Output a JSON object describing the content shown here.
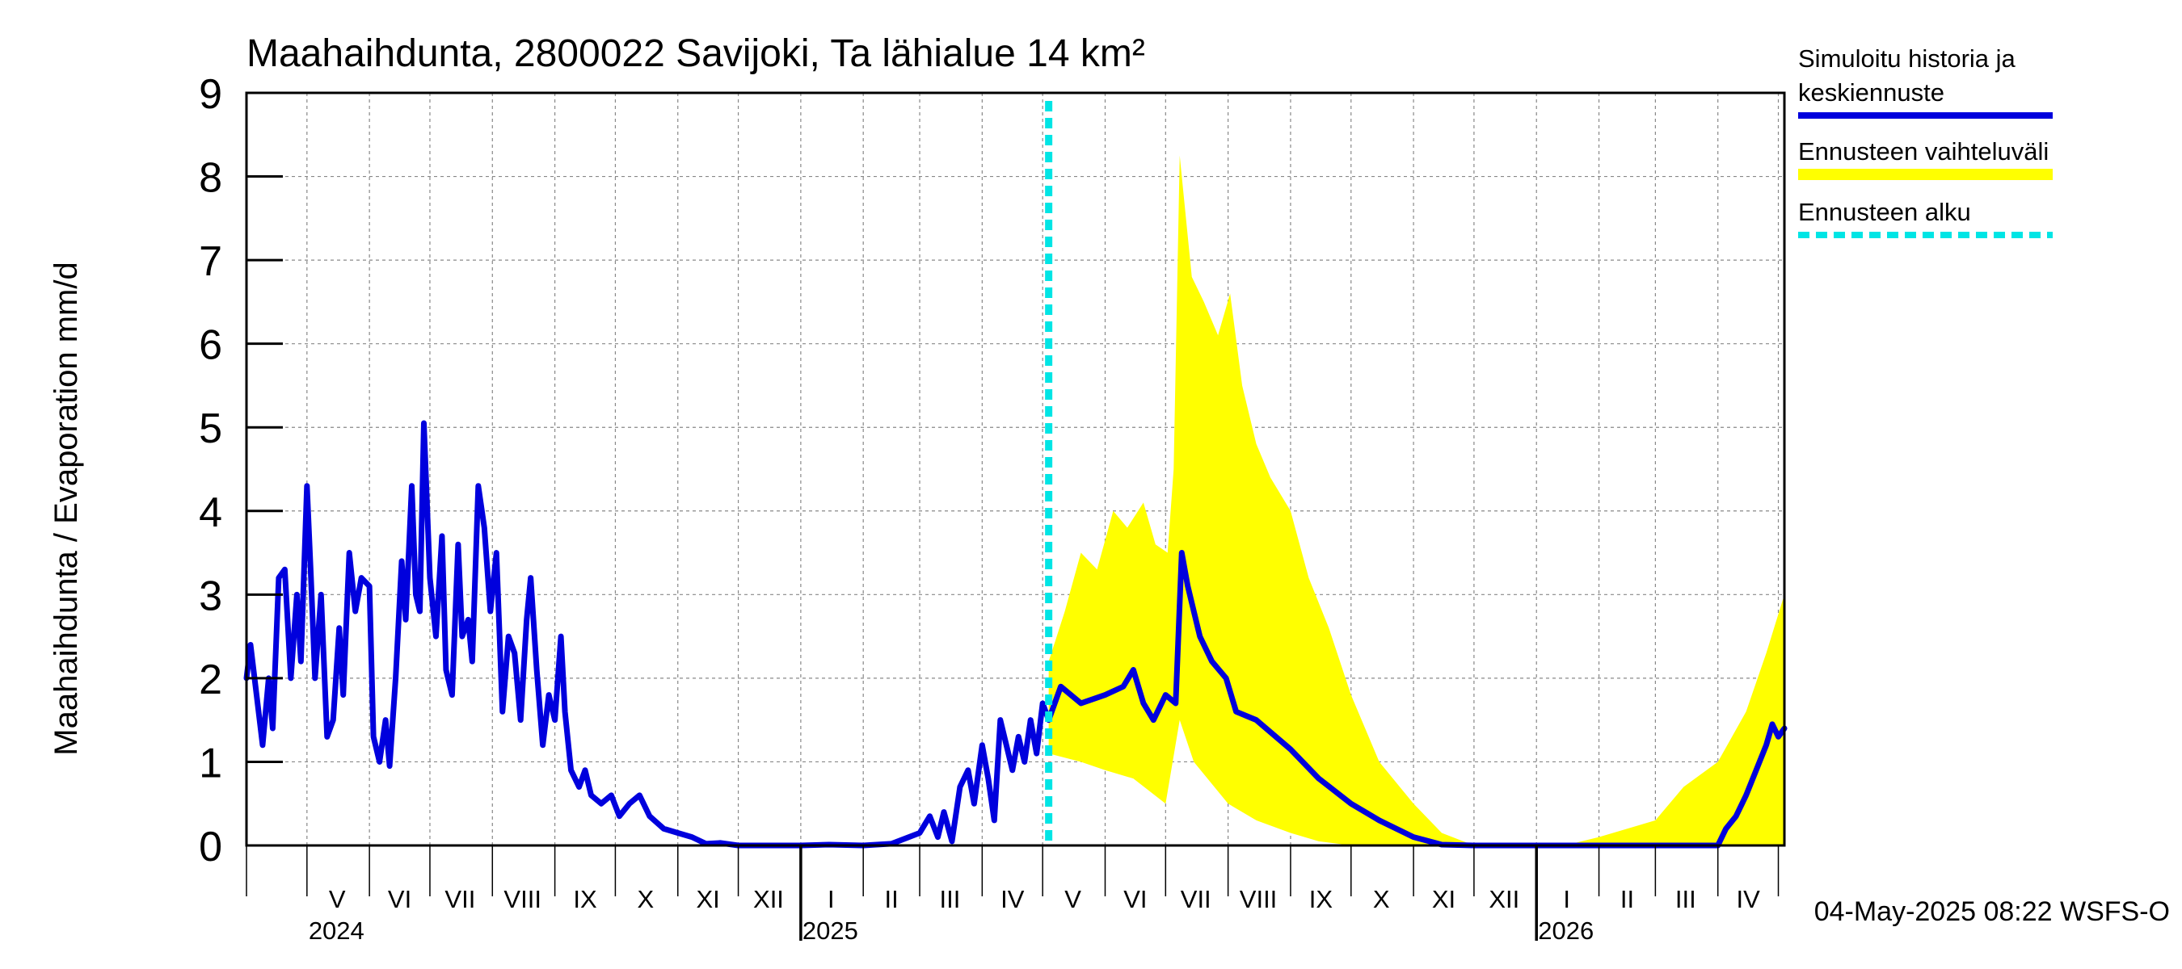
{
  "chart_data": {
    "type": "line",
    "title": "Maahaihdunta, 2800022 Savijoki, Ta lähialue 14 km²",
    "ylabel": "Maahaihdunta / Evaporation   mm/d",
    "ylim": [
      0,
      9
    ],
    "y_ticks": [
      "0",
      "1",
      "2",
      "3",
      "4",
      "5",
      "6",
      "7",
      "8",
      "9"
    ],
    "xlim": [
      "2024-04-01",
      "2026-05-04"
    ],
    "grid": true,
    "month_ticks": [
      "2024-04-01",
      "2024-05-01",
      "2024-06-01",
      "2024-07-01",
      "2024-08-01",
      "2024-09-01",
      "2024-10-01",
      "2024-11-01",
      "2024-12-01",
      "2025-01-01",
      "2025-02-01",
      "2025-03-01",
      "2025-04-01",
      "2025-05-01",
      "2025-06-01",
      "2025-07-01",
      "2025-08-01",
      "2025-09-01",
      "2025-10-01",
      "2025-11-01",
      "2025-12-01",
      "2026-01-01",
      "2026-02-01",
      "2026-03-01",
      "2026-04-01",
      "2026-05-01"
    ],
    "month_labels": [
      {
        "label": "V",
        "date": "2024-05-16"
      },
      {
        "label": "VI",
        "date": "2024-06-16"
      },
      {
        "label": "VII",
        "date": "2024-07-16"
      },
      {
        "label": "VIII",
        "date": "2024-08-16"
      },
      {
        "label": "IX",
        "date": "2024-09-16"
      },
      {
        "label": "X",
        "date": "2024-10-16"
      },
      {
        "label": "XI",
        "date": "2024-11-16"
      },
      {
        "label": "XII",
        "date": "2024-12-16"
      },
      {
        "label": "I",
        "date": "2025-01-16"
      },
      {
        "label": "II",
        "date": "2025-02-15"
      },
      {
        "label": "III",
        "date": "2025-03-16"
      },
      {
        "label": "IV",
        "date": "2025-04-16"
      },
      {
        "label": "V",
        "date": "2025-05-16"
      },
      {
        "label": "VI",
        "date": "2025-06-16"
      },
      {
        "label": "VII",
        "date": "2025-07-16"
      },
      {
        "label": "VIII",
        "date": "2025-08-16"
      },
      {
        "label": "IX",
        "date": "2025-09-16"
      },
      {
        "label": "X",
        "date": "2025-10-16"
      },
      {
        "label": "XI",
        "date": "2025-11-16"
      },
      {
        "label": "XII",
        "date": "2025-12-16"
      },
      {
        "label": "I",
        "date": "2026-01-16"
      },
      {
        "label": "II",
        "date": "2026-02-15"
      },
      {
        "label": "III",
        "date": "2026-03-16"
      },
      {
        "label": "IV",
        "date": "2026-04-16"
      }
    ],
    "year_labels": [
      {
        "label": "2024",
        "date": "2024-05-01"
      },
      {
        "label": "2025",
        "date": "2025-01-01"
      },
      {
        "label": "2026",
        "date": "2026-01-01"
      }
    ],
    "forecast_start": "2025-05-04",
    "series": [
      {
        "name": "Simuloitu historia ja keskiennuste",
        "color": "#0000dd",
        "points": [
          [
            "2024-04-01",
            2.0
          ],
          [
            "2024-04-03",
            2.4
          ],
          [
            "2024-04-06",
            1.8
          ],
          [
            "2024-04-09",
            1.2
          ],
          [
            "2024-04-12",
            2.0
          ],
          [
            "2024-04-14",
            1.4
          ],
          [
            "2024-04-17",
            3.2
          ],
          [
            "2024-04-20",
            3.3
          ],
          [
            "2024-04-23",
            2.0
          ],
          [
            "2024-04-26",
            3.0
          ],
          [
            "2024-04-28",
            2.2
          ],
          [
            "2024-05-01",
            4.3
          ],
          [
            "2024-05-03",
            3.2
          ],
          [
            "2024-05-05",
            2.0
          ],
          [
            "2024-05-08",
            3.0
          ],
          [
            "2024-05-11",
            1.3
          ],
          [
            "2024-05-14",
            1.5
          ],
          [
            "2024-05-17",
            2.6
          ],
          [
            "2024-05-19",
            1.8
          ],
          [
            "2024-05-22",
            3.5
          ],
          [
            "2024-05-25",
            2.8
          ],
          [
            "2024-05-28",
            3.2
          ],
          [
            "2024-06-01",
            3.1
          ],
          [
            "2024-06-03",
            1.3
          ],
          [
            "2024-06-06",
            1.0
          ],
          [
            "2024-06-09",
            1.5
          ],
          [
            "2024-06-11",
            0.95
          ],
          [
            "2024-06-14",
            2.0
          ],
          [
            "2024-06-17",
            3.4
          ],
          [
            "2024-06-19",
            2.7
          ],
          [
            "2024-06-22",
            4.3
          ],
          [
            "2024-06-24",
            3.0
          ],
          [
            "2024-06-26",
            2.8
          ],
          [
            "2024-06-28",
            5.05
          ],
          [
            "2024-07-01",
            3.2
          ],
          [
            "2024-07-04",
            2.5
          ],
          [
            "2024-07-07",
            3.7
          ],
          [
            "2024-07-09",
            2.1
          ],
          [
            "2024-07-12",
            1.8
          ],
          [
            "2024-07-15",
            3.6
          ],
          [
            "2024-07-17",
            2.5
          ],
          [
            "2024-07-20",
            2.7
          ],
          [
            "2024-07-22",
            2.2
          ],
          [
            "2024-07-25",
            4.3
          ],
          [
            "2024-07-28",
            3.8
          ],
          [
            "2024-07-31",
            2.8
          ],
          [
            "2024-08-03",
            3.5
          ],
          [
            "2024-08-06",
            1.6
          ],
          [
            "2024-08-09",
            2.5
          ],
          [
            "2024-08-12",
            2.3
          ],
          [
            "2024-08-15",
            1.5
          ],
          [
            "2024-08-18",
            2.7
          ],
          [
            "2024-08-20",
            3.2
          ],
          [
            "2024-08-23",
            2.1
          ],
          [
            "2024-08-26",
            1.2
          ],
          [
            "2024-08-29",
            1.8
          ],
          [
            "2024-09-01",
            1.5
          ],
          [
            "2024-09-04",
            2.5
          ],
          [
            "2024-09-06",
            1.6
          ],
          [
            "2024-09-09",
            0.9
          ],
          [
            "2024-09-13",
            0.7
          ],
          [
            "2024-09-16",
            0.9
          ],
          [
            "2024-09-19",
            0.6
          ],
          [
            "2024-09-24",
            0.5
          ],
          [
            "2024-09-29",
            0.6
          ],
          [
            "2024-10-03",
            0.35
          ],
          [
            "2024-10-08",
            0.5
          ],
          [
            "2024-10-13",
            0.6
          ],
          [
            "2024-10-18",
            0.35
          ],
          [
            "2024-10-25",
            0.2
          ],
          [
            "2024-11-01",
            0.15
          ],
          [
            "2024-11-08",
            0.1
          ],
          [
            "2024-11-15",
            0.02
          ],
          [
            "2024-11-22",
            0.03
          ],
          [
            "2024-12-01",
            0.0
          ],
          [
            "2024-12-15",
            0.0
          ],
          [
            "2025-01-01",
            0.0
          ],
          [
            "2025-01-15",
            0.01
          ],
          [
            "2025-02-01",
            0.0
          ],
          [
            "2025-02-15",
            0.02
          ],
          [
            "2025-03-01",
            0.15
          ],
          [
            "2025-03-06",
            0.35
          ],
          [
            "2025-03-10",
            0.1
          ],
          [
            "2025-03-13",
            0.4
          ],
          [
            "2025-03-17",
            0.05
          ],
          [
            "2025-03-21",
            0.7
          ],
          [
            "2025-03-25",
            0.9
          ],
          [
            "2025-03-28",
            0.5
          ],
          [
            "2025-04-01",
            1.2
          ],
          [
            "2025-04-04",
            0.8
          ],
          [
            "2025-04-07",
            0.3
          ],
          [
            "2025-04-10",
            1.5
          ],
          [
            "2025-04-13",
            1.2
          ],
          [
            "2025-04-16",
            0.9
          ],
          [
            "2025-04-19",
            1.3
          ],
          [
            "2025-04-22",
            1.0
          ],
          [
            "2025-04-25",
            1.5
          ],
          [
            "2025-04-28",
            1.1
          ],
          [
            "2025-05-01",
            1.7
          ],
          [
            "2025-05-04",
            1.5
          ],
          [
            "2025-05-10",
            1.9
          ],
          [
            "2025-05-20",
            1.7
          ],
          [
            "2025-06-01",
            1.8
          ],
          [
            "2025-06-10",
            1.9
          ],
          [
            "2025-06-15",
            2.1
          ],
          [
            "2025-06-20",
            1.7
          ],
          [
            "2025-06-25",
            1.5
          ],
          [
            "2025-07-01",
            1.8
          ],
          [
            "2025-07-06",
            1.7
          ],
          [
            "2025-07-09",
            3.5
          ],
          [
            "2025-07-12",
            3.1
          ],
          [
            "2025-07-18",
            2.5
          ],
          [
            "2025-07-24",
            2.2
          ],
          [
            "2025-07-31",
            2.0
          ],
          [
            "2025-08-05",
            1.6
          ],
          [
            "2025-08-15",
            1.5
          ],
          [
            "2025-09-01",
            1.15
          ],
          [
            "2025-09-15",
            0.8
          ],
          [
            "2025-10-01",
            0.5
          ],
          [
            "2025-10-15",
            0.3
          ],
          [
            "2025-11-01",
            0.1
          ],
          [
            "2025-11-15",
            0.01
          ],
          [
            "2025-12-01",
            0.0
          ],
          [
            "2026-01-01",
            0.0
          ],
          [
            "2026-02-01",
            0.0
          ],
          [
            "2026-03-01",
            0.0
          ],
          [
            "2026-04-01",
            0.0
          ],
          [
            "2026-04-05",
            0.2
          ],
          [
            "2026-04-10",
            0.35
          ],
          [
            "2026-04-15",
            0.6
          ],
          [
            "2026-04-20",
            0.9
          ],
          [
            "2026-04-25",
            1.2
          ],
          [
            "2026-04-28",
            1.45
          ],
          [
            "2026-05-01",
            1.3
          ],
          [
            "2026-05-04",
            1.4
          ]
        ]
      },
      {
        "name": "Ennusteen vaihteluväli",
        "color": "#ffff00",
        "upper": [
          [
            "2025-05-04",
            2.2
          ],
          [
            "2025-05-12",
            2.8
          ],
          [
            "2025-05-20",
            3.5
          ],
          [
            "2025-05-28",
            3.3
          ],
          [
            "2025-06-05",
            4.0
          ],
          [
            "2025-06-12",
            3.8
          ],
          [
            "2025-06-20",
            4.1
          ],
          [
            "2025-06-26",
            3.6
          ],
          [
            "2025-07-02",
            3.5
          ],
          [
            "2025-07-05",
            4.5
          ],
          [
            "2025-07-08",
            8.25
          ],
          [
            "2025-07-14",
            6.8
          ],
          [
            "2025-07-20",
            6.5
          ],
          [
            "2025-07-27",
            6.1
          ],
          [
            "2025-08-02",
            6.6
          ],
          [
            "2025-08-08",
            5.5
          ],
          [
            "2025-08-15",
            4.8
          ],
          [
            "2025-08-22",
            4.4
          ],
          [
            "2025-09-01",
            4.0
          ],
          [
            "2025-09-10",
            3.2
          ],
          [
            "2025-09-20",
            2.6
          ],
          [
            "2025-10-01",
            1.8
          ],
          [
            "2025-10-15",
            1.0
          ],
          [
            "2025-11-01",
            0.5
          ],
          [
            "2025-11-15",
            0.15
          ],
          [
            "2025-12-01",
            0.0
          ],
          [
            "2026-01-15",
            0.0
          ],
          [
            "2026-02-01",
            0.1
          ],
          [
            "2026-03-01",
            0.3
          ],
          [
            "2026-03-15",
            0.7
          ],
          [
            "2026-04-01",
            1.0
          ],
          [
            "2026-04-15",
            1.6
          ],
          [
            "2026-04-25",
            2.3
          ],
          [
            "2026-05-04",
            3.0
          ]
        ],
        "lower": [
          [
            "2025-05-04",
            1.1
          ],
          [
            "2025-05-20",
            1.0
          ],
          [
            "2025-06-01",
            0.9
          ],
          [
            "2025-06-15",
            0.8
          ],
          [
            "2025-07-01",
            0.5
          ],
          [
            "2025-07-08",
            1.5
          ],
          [
            "2025-07-15",
            1.0
          ],
          [
            "2025-08-01",
            0.5
          ],
          [
            "2025-08-15",
            0.3
          ],
          [
            "2025-09-01",
            0.15
          ],
          [
            "2025-09-15",
            0.05
          ],
          [
            "2025-10-01",
            0.0
          ],
          [
            "2026-05-04",
            0.0
          ]
        ]
      },
      {
        "name": "Ennusteen alku",
        "color": "#00e5e5"
      }
    ]
  },
  "footer": {
    "timestamp": "04-May-2025 08:22 WSFS-O"
  }
}
